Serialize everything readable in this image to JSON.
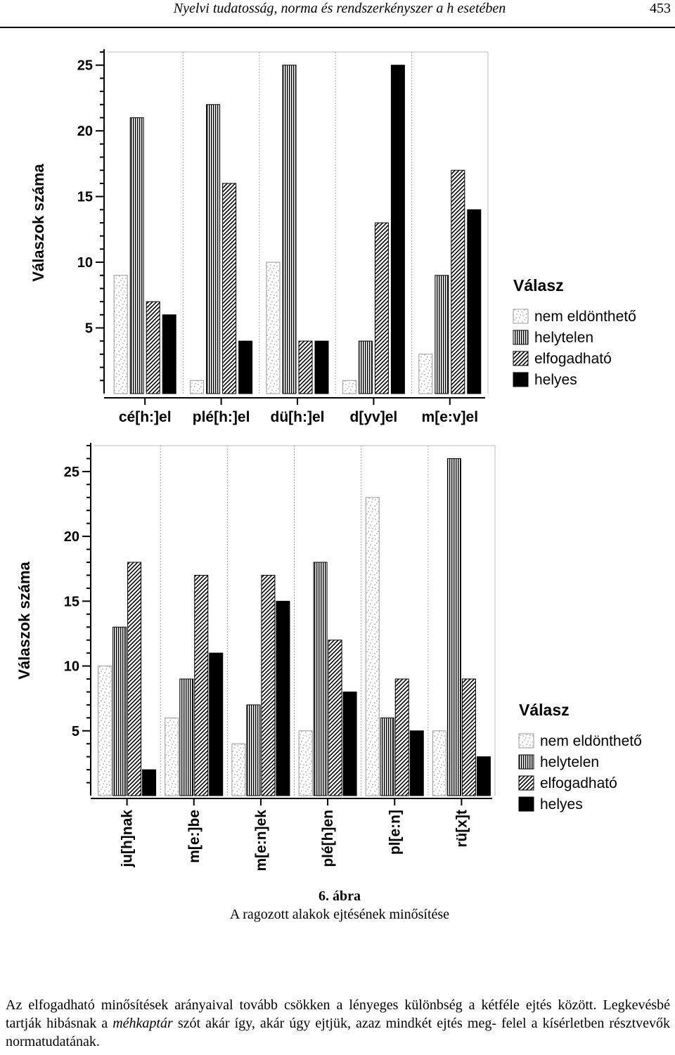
{
  "header": {
    "title": "Nyelvi tudatosság, norma és rendszerkényszer a h esetében",
    "page_number": "453"
  },
  "chart_data": [
    {
      "type": "bar",
      "ylabel": "Válaszok száma",
      "ylim": [
        0,
        26
      ],
      "yticks": [
        5,
        10,
        15,
        20,
        25
      ],
      "categories": [
        "cé[h:]el",
        "plé[h:]el",
        "dü[h:]el",
        "d[yv]el",
        "m[e:v]el"
      ],
      "tick_orientation": "horizontal",
      "legend_title": "Válasz",
      "legend_entries": [
        "nem eldönthető",
        "helytelen",
        "elfogadható",
        "helyes"
      ],
      "series": [
        {
          "name": "nem eldönthető",
          "values": [
            9,
            1,
            10,
            1,
            3
          ]
        },
        {
          "name": "helytelen",
          "values": [
            21,
            22,
            25,
            4,
            9
          ]
        },
        {
          "name": "elfogadható",
          "values": [
            7,
            16,
            4,
            13,
            17
          ]
        },
        {
          "name": "helyes",
          "values": [
            6,
            4,
            4,
            25,
            14
          ]
        }
      ]
    },
    {
      "type": "bar",
      "ylabel": "Válaszok száma",
      "ylim": [
        0,
        27
      ],
      "yticks": [
        5,
        10,
        15,
        20,
        25
      ],
      "categories": [
        "ju[h]nak",
        "m[e:]be",
        "m[e:n]ek",
        "plé[h]en",
        "pl[e:n]",
        "rü[x]t"
      ],
      "tick_orientation": "vertical",
      "legend_title": "Válasz",
      "legend_entries": [
        "nem eldönthető",
        "helytelen",
        "elfogadható",
        "helyes"
      ],
      "series": [
        {
          "name": "nem eldönthető",
          "values": [
            10,
            6,
            4,
            5,
            23,
            5
          ]
        },
        {
          "name": "helytelen",
          "values": [
            13,
            9,
            7,
            18,
            6,
            26
          ]
        },
        {
          "name": "elfogadható",
          "values": [
            18,
            17,
            17,
            12,
            9,
            9
          ]
        },
        {
          "name": "helyes",
          "values": [
            2,
            11,
            15,
            8,
            5,
            3
          ]
        }
      ]
    }
  ],
  "caption": {
    "number": "6. ábra",
    "title": "A ragozott alakok ejtésének minősítése"
  },
  "body": {
    "line1": "Az elfogadható minősítések arányaival tovább csökken a lényeges különbség a kétféle ejtés között.",
    "line2_start": "Legkevésbé tartják hibásnak a ",
    "line2_em": "méhkaptár",
    "line2_end": " szót akár így, akár úgy ejtjük, azaz mindkét ejtés meg-",
    "line3": "felel a kísérletben résztvevők normatudatának."
  }
}
